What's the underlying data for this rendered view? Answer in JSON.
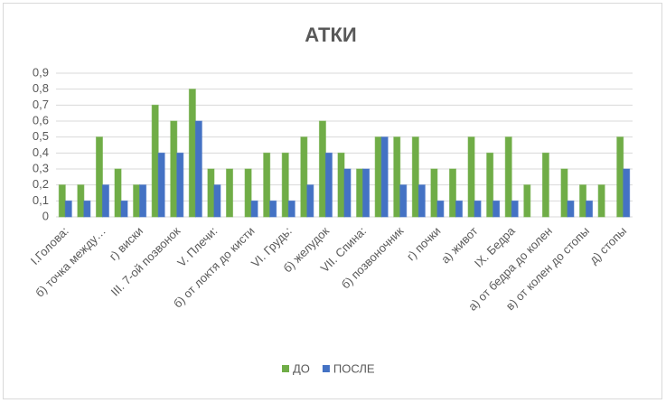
{
  "chart_data": {
    "type": "bar",
    "title": "АТКИ",
    "categories": [
      "I.Голова:",
      null,
      "б) точка между…",
      null,
      "г) виски",
      null,
      "III. 7-ой позвонок",
      null,
      "V. Плечи:",
      null,
      "б) от локтя до кисти",
      null,
      "VI. Грудь:",
      null,
      "б) желудок",
      null,
      "VII. Спина:",
      null,
      "б) позвоночник",
      null,
      "г) почки",
      null,
      "а) живот",
      null,
      "IX. Бедра",
      null,
      "а) от бедра до колен",
      null,
      "в) от колен до стопы",
      null,
      "д) стопы"
    ],
    "series": [
      {
        "name": "ДО",
        "color": "#70ad47",
        "values": [
          0.2,
          0.2,
          0.5,
          0.3,
          0.2,
          0.7,
          0.6,
          0.8,
          0.3,
          0.3,
          0.3,
          0.4,
          0.4,
          0.5,
          0.6,
          0.4,
          0.3,
          0.5,
          0.5,
          0.5,
          0.3,
          0.3,
          0.5,
          0.4,
          0.5,
          0.2,
          0.4,
          0.3,
          0.2,
          0.2,
          0.5
        ]
      },
      {
        "name": "ПОСЛЕ",
        "color": "#4472c4",
        "values": [
          0.1,
          0.1,
          0.2,
          0.1,
          0.2,
          0.4,
          0.4,
          0.6,
          0.2,
          0,
          0.1,
          0.1,
          0.1,
          0.2,
          0.4,
          0.3,
          0.3,
          0.5,
          0.2,
          0.2,
          0.1,
          0.1,
          0.1,
          0.1,
          0.1,
          0,
          0,
          0.1,
          0.1,
          0,
          0.3
        ]
      }
    ],
    "ylim": [
      0,
      0.9
    ],
    "yticks": [
      0,
      {
        "value": 0.1,
        "label": "0,1"
      },
      {
        "value": 0.2,
        "label": "0,2"
      },
      {
        "value": 0.3,
        "label": "0,3"
      },
      {
        "value": 0.4,
        "label": "0,4"
      },
      {
        "value": 0.5,
        "label": "0,5"
      },
      {
        "value": 0.6,
        "label": "0,6"
      },
      {
        "value": 0.7,
        "label": "0,7"
      },
      {
        "value": 0.8,
        "label": "0,8"
      },
      {
        "value": 0.9,
        "label": "0,9"
      }
    ],
    "grid": true,
    "legend": "bottom"
  }
}
